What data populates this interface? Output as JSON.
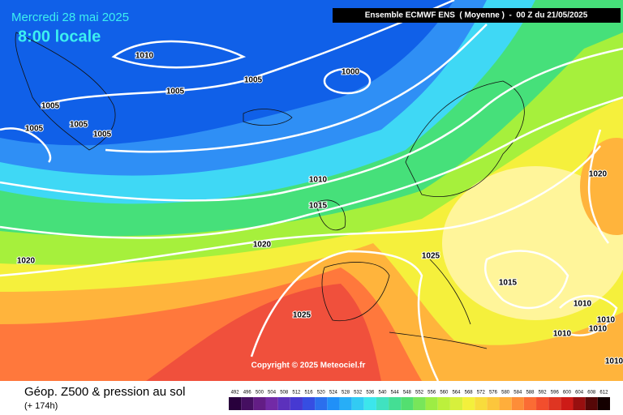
{
  "header": {
    "date": "Mercredi 28 mai 2025",
    "time": "8:00 locale",
    "model": "Ensemble ECMWF ENS  ( Moyenne )  -  00 Z du 21/05/2025"
  },
  "isobar_labels": [
    "1010",
    "1005",
    "1000",
    "1005",
    "1005",
    "1005",
    "1005",
    "1005",
    "1010",
    "1015",
    "1020",
    "1020",
    "1025",
    "1025",
    "1020",
    "1015",
    "1010",
    "1010",
    "1010",
    "1010",
    "1010"
  ],
  "footer": {
    "title": "Géop. Z500 & pression au sol",
    "lead": "(+ 174h)",
    "copyright": "Copyright © 2025 Meteociel.fr"
  },
  "scale": {
    "values": [
      492,
      496,
      500,
      504,
      508,
      512,
      516,
      520,
      524,
      528,
      532,
      536,
      540,
      544,
      548,
      552,
      556,
      560,
      564,
      568,
      572,
      576,
      580,
      584,
      588,
      592,
      596,
      600,
      604,
      608,
      612
    ]
  }
}
